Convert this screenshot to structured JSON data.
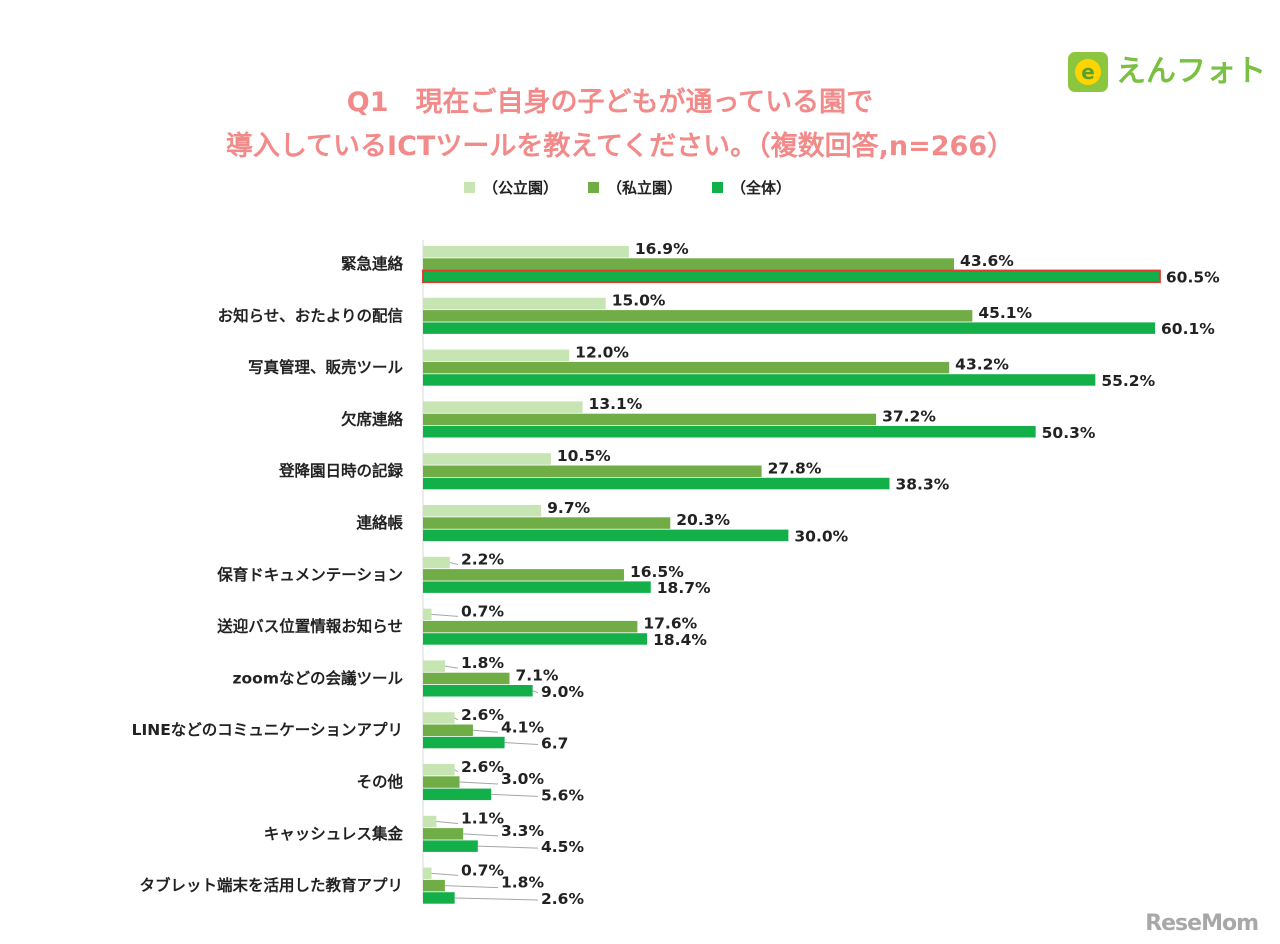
{
  "header": {
    "title_line1": "Q1　現在ご自身の子どもが通っている園で",
    "title_line2": "導入しているICTツールを教えてください。（複数回答,n=266）"
  },
  "logo": {
    "text": "えんフォト",
    "icon": "e-circle-icon",
    "brand_color": "#8cc63f"
  },
  "watermark": {
    "text": "ReseMom"
  },
  "colors": {
    "public": "#c6e5b3",
    "private": "#70ad47",
    "overall": "#13b04a",
    "highlight": "#e03c31"
  },
  "chart_data": {
    "type": "bar",
    "orientation": "horizontal",
    "title": "Q1　現在ご自身の子どもが通っている園で導入しているICTツールを教えてください。（複数回答,n=266）",
    "legend_position": "top",
    "grid": false,
    "xlim": [
      0,
      70
    ],
    "categories": [
      "緊急連絡",
      "お知らせ、おたよりの配信",
      "写真管理、販売ツール",
      "欠席連絡",
      "登降園日時の記録",
      "連絡帳",
      "保育ドキュメンテーション",
      "送迎バス位置情報お知らせ",
      "zoomなどの会議ツール",
      "LINEなどのコミュニケーションアプリ",
      "その他",
      "キャッシュレス集金",
      "タブレット端末を活用した教育アプリ"
    ],
    "series": [
      {
        "name": "（公立園）",
        "values": [
          16.9,
          15.0,
          12.0,
          13.1,
          10.5,
          9.7,
          2.2,
          0.7,
          1.8,
          2.6,
          2.6,
          1.1,
          0.7
        ],
        "labels": [
          "16.9%",
          "15.0%",
          "12.0%",
          "13.1%",
          "10.5%",
          "9.7%",
          "2.2%",
          "0.7%",
          "1.8%",
          "2.6%",
          "2.6%",
          "1.1%",
          "0.7%"
        ]
      },
      {
        "name": "（私立園）",
        "values": [
          43.6,
          45.1,
          43.2,
          37.2,
          27.8,
          20.3,
          16.5,
          17.6,
          7.1,
          4.1,
          3.0,
          3.3,
          1.8
        ],
        "labels": [
          "43.6%",
          "45.1%",
          "43.2%",
          "37.2%",
          "27.8%",
          "20.3%",
          "16.5%",
          "17.6%",
          "7.1%",
          "4.1%",
          "3.0%",
          "3.3%",
          "1.8%"
        ]
      },
      {
        "name": "（全体）",
        "values": [
          60.5,
          60.1,
          55.2,
          50.3,
          38.3,
          30.0,
          18.7,
          18.4,
          9.0,
          6.7,
          5.6,
          4.5,
          2.6
        ],
        "labels": [
          "60.5%",
          "60.1%",
          "55.2%",
          "50.3%",
          "38.3%",
          "30.0%",
          "18.7%",
          "18.4%",
          "9.0%",
          "6.7",
          "5.6%",
          "4.5%",
          "2.6%"
        ]
      }
    ],
    "highlighted": {
      "category_index": 0,
      "series_index": 2
    }
  }
}
